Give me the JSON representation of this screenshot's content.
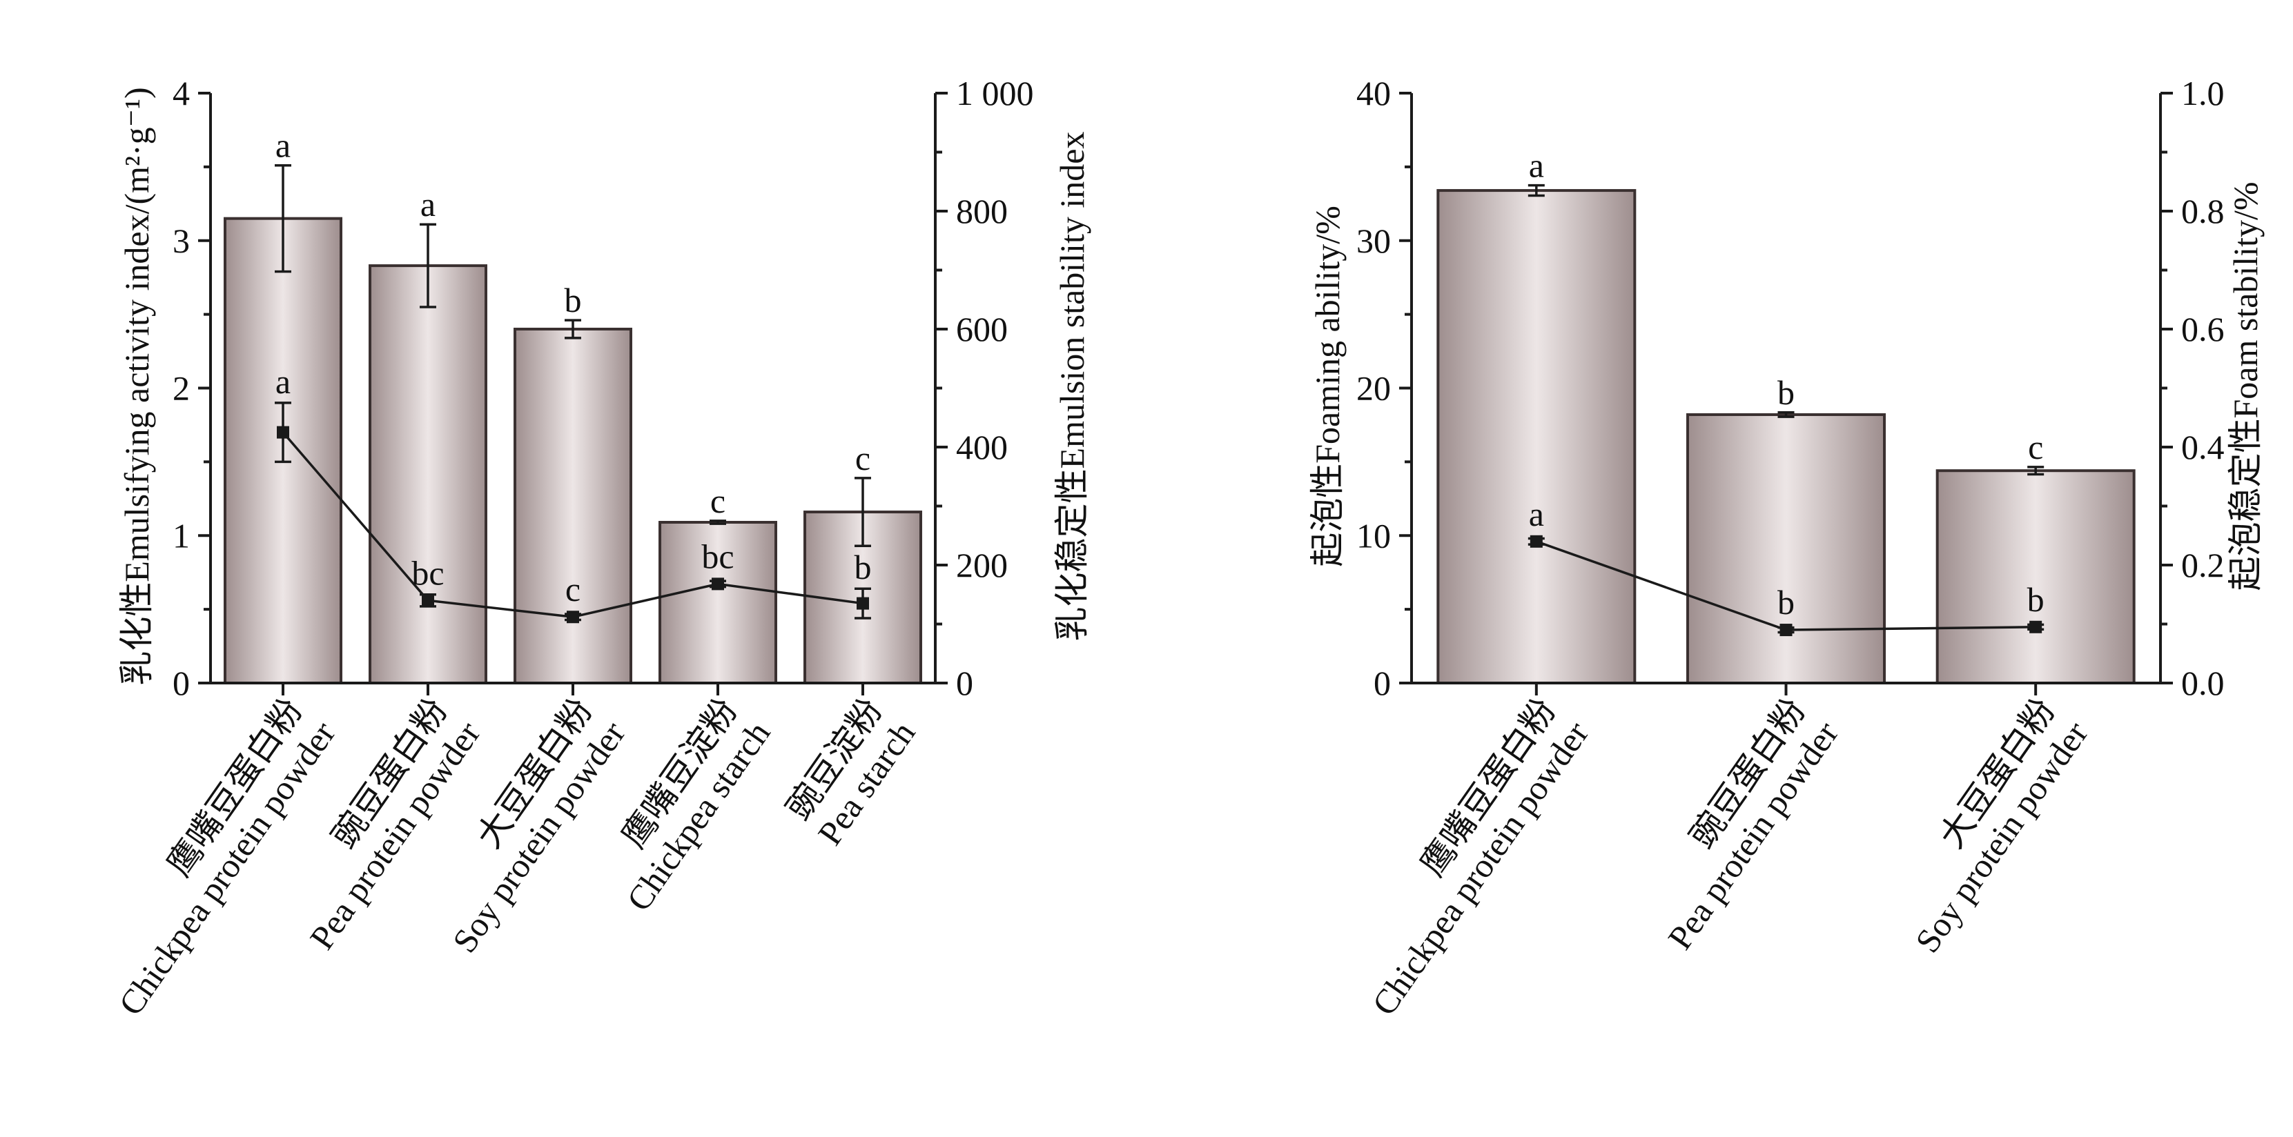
{
  "colors": {
    "bar_light": "#ede6e6",
    "bar_dark": "#9e8e8e",
    "bar_edge": "#3a3030",
    "ink": "#1a1a1a"
  },
  "chart_data": [
    {
      "type": "bar",
      "title": "",
      "categories": [
        [
          "鹰嘴豆蛋白粉",
          "Chickpea protein powder"
        ],
        [
          "豌豆蛋白粉",
          "Pea protein powder"
        ],
        [
          "大豆蛋白粉",
          "Soy protein powder"
        ],
        [
          "鹰嘴豆淀粉",
          "Chickpea starch"
        ],
        [
          "豌豆淀粉",
          "Pea starch"
        ]
      ],
      "ylabel": "乳化性Emulsifying activity index/(m²·g⁻¹)",
      "ylabel_right": "乳化稳定性Emulsion stability index",
      "ylim": [
        0,
        4
      ],
      "ylim_right": [
        0,
        1000
      ],
      "yticks": [
        "0",
        "1",
        "2",
        "3",
        "4"
      ],
      "yticks_right": [
        "0",
        "200",
        "400",
        "600",
        "800",
        "1 000"
      ],
      "grid": false,
      "series": [
        {
          "name": "乳化性Emulsifying activity index",
          "kind": "bar",
          "axis": "left",
          "values": [
            3.15,
            2.83,
            2.4,
            1.09,
            1.16
          ],
          "errors": [
            0.36,
            0.28,
            0.06,
            0.01,
            0.23
          ],
          "significance": [
            "a",
            "a",
            "b",
            "c",
            "c"
          ]
        },
        {
          "name": "乳化稳定性Emulsion stability index",
          "kind": "line",
          "axis": "right",
          "values": [
            425,
            140,
            112,
            168,
            135
          ],
          "errors": [
            50,
            10,
            5,
            5,
            25
          ],
          "significance": [
            "a",
            "bc",
            "c",
            "bc",
            "b"
          ]
        }
      ]
    },
    {
      "type": "bar",
      "title": "",
      "categories": [
        [
          "鹰嘴豆蛋白粉",
          "Chickpea protein powder"
        ],
        [
          "豌豆蛋白粉",
          "Pea protein powder"
        ],
        [
          "大豆蛋白粉",
          "Soy protein powder"
        ]
      ],
      "ylabel": "起泡性Foaming ability/%",
      "ylabel_right": "起泡稳定性Foam stability/%",
      "ylim": [
        0,
        40
      ],
      "ylim_right": [
        0,
        1.0
      ],
      "yticks": [
        "0",
        "10",
        "20",
        "30",
        "40"
      ],
      "yticks_right": [
        "0.0",
        "0.2",
        "0.4",
        "0.6",
        "0.8",
        "1.0"
      ],
      "grid": false,
      "series": [
        {
          "name": "起泡性Foaming ability",
          "kind": "bar",
          "axis": "left",
          "values": [
            33.4,
            18.2,
            14.4
          ],
          "errors": [
            0.35,
            0.15,
            0.25
          ],
          "significance": [
            "a",
            "b",
            "c"
          ]
        },
        {
          "name": "起泡稳定性Foam stability",
          "kind": "line",
          "axis": "right",
          "values": [
            0.24,
            0.09,
            0.095
          ],
          "errors": [
            0.005,
            0.004,
            0.004
          ],
          "significance": [
            "a",
            "b",
            "b"
          ]
        }
      ]
    }
  ]
}
